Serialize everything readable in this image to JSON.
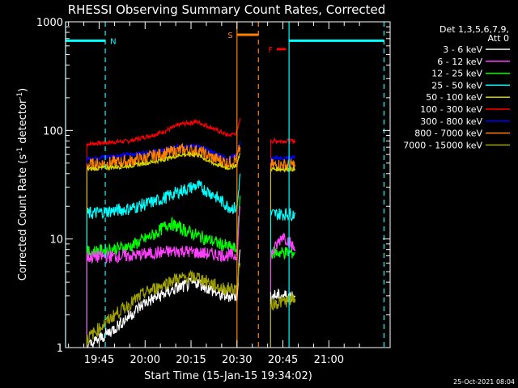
{
  "chart_data": {
    "type": "line",
    "title": "RHESSI Observing Summary Count Rates, Corrected",
    "xlabel": "Start Time (15-Jan-15 19:34:02)",
    "ylabel": "Corrected Count Rate (s⁻¹ detector⁻¹)",
    "ylabel_parts": {
      "a": "Corrected Count Rate (s",
      "b": "-1",
      "c": " detector",
      "d": "-1",
      "e": ")"
    },
    "y_scale": "log",
    "ylim": [
      1,
      1000
    ],
    "xlim": [
      "19:34:02",
      "21:20:00"
    ],
    "y_ticks": [
      "1",
      "10",
      "100",
      "1000"
    ],
    "x_ticks": [
      "19:45",
      "20:00",
      "20:15",
      "20:30",
      "20:45",
      "21:00"
    ],
    "timestamp": "25-Oct-2021 08:04",
    "detector_info": [
      "Det 1,3,5,6,7,9,",
      "Att 0"
    ],
    "legend_placement": "right",
    "series": [
      {
        "name": "3 - 6 keV",
        "color": "#ffffff"
      },
      {
        "name": "6 - 12 keV",
        "color": "#ff40ff"
      },
      {
        "name": "12 - 25 keV",
        "color": "#00ff00"
      },
      {
        "name": "25 - 50 keV",
        "color": "#00ffff"
      },
      {
        "name": "50 - 100 keV",
        "color": "#d4d400"
      },
      {
        "name": "100 - 300 keV",
        "color": "#ff0000"
      },
      {
        "name": "300 - 800 keV",
        "color": "#0000ff"
      },
      {
        "name": "800 - 7000 keV",
        "color": "#ff8000"
      },
      {
        "name": "7000 - 15000 keV",
        "color": "#a0a000"
      }
    ],
    "curves": [
      {
        "series": "100 - 300 keV",
        "color": "#ff0000",
        "segments": [
          [
            [
              "19:41",
              75
            ],
            [
              "19:55",
              80
            ],
            [
              "20:05",
              95
            ],
            [
              "20:12",
              115
            ],
            [
              "20:17",
              120
            ],
            [
              "20:22",
              105
            ],
            [
              "20:27",
              90
            ],
            [
              "20:30",
              95
            ],
            [
              "20:31",
              130
            ]
          ],
          [
            [
              "20:41",
              80
            ],
            [
              "20:49",
              80
            ]
          ]
        ]
      },
      {
        "series": "300 - 800 keV",
        "color": "#0000ff",
        "segments": [
          [
            [
              "19:41",
              55
            ],
            [
              "19:55",
              60
            ],
            [
              "20:05",
              65
            ],
            [
              "20:12",
              72
            ],
            [
              "20:17",
              72
            ],
            [
              "20:22",
              63
            ],
            [
              "20:27",
              55
            ],
            [
              "20:30",
              60
            ],
            [
              "20:31",
              80
            ]
          ],
          [
            [
              "20:41",
              55
            ],
            [
              "20:49",
              56
            ]
          ]
        ]
      },
      {
        "series": "800 - 7000 keV",
        "color": "#ff8000",
        "segments": [
          [
            [
              "19:41",
              48
            ],
            [
              "19:55",
              52
            ],
            [
              "20:05",
              60
            ],
            [
              "20:12",
              66
            ],
            [
              "20:17",
              65
            ],
            [
              "20:22",
              56
            ],
            [
              "20:27",
              50
            ],
            [
              "20:30",
              55
            ],
            [
              "20:31",
              70
            ]
          ],
          [
            [
              "20:41",
              48
            ],
            [
              "20:49",
              48
            ]
          ]
        ]
      },
      {
        "series": "50 - 100 keV",
        "color": "#d4d400",
        "segments": [
          [
            [
              "19:41",
              44
            ],
            [
              "19:55",
              47
            ],
            [
              "20:05",
              53
            ],
            [
              "20:12",
              60
            ],
            [
              "20:17",
              60
            ],
            [
              "20:22",
              50
            ],
            [
              "20:27",
              45
            ],
            [
              "20:30",
              48
            ],
            [
              "20:31",
              62
            ]
          ],
          [
            [
              "20:41",
              44
            ],
            [
              "20:49",
              44
            ]
          ]
        ]
      },
      {
        "series": "25 - 50 keV",
        "color": "#00ffff",
        "segments": [
          [
            [
              "19:41",
              17
            ],
            [
              "19:55",
              19
            ],
            [
              "20:05",
              23
            ],
            [
              "20:12",
              28
            ],
            [
              "20:17",
              31
            ],
            [
              "20:22",
              26
            ],
            [
              "20:27",
              20
            ],
            [
              "20:30",
              19
            ],
            [
              "20:31",
              40
            ]
          ],
          [
            [
              "20:41",
              17
            ],
            [
              "20:49",
              17
            ]
          ]
        ]
      },
      {
        "series": "12 - 25 keV",
        "color": "#00ff00",
        "segments": [
          [
            [
              "19:41",
              7.5
            ],
            [
              "19:55",
              8.5
            ],
            [
              "20:03",
              11
            ],
            [
              "20:08",
              14
            ],
            [
              "20:13",
              12
            ],
            [
              "20:20",
              10
            ],
            [
              "20:27",
              8.5
            ],
            [
              "20:30",
              8
            ],
            [
              "20:31",
              25
            ]
          ],
          [
            [
              "20:41",
              7.5
            ],
            [
              "20:49",
              7.5
            ]
          ]
        ]
      },
      {
        "series": "6 - 12 keV",
        "color": "#ff40ff",
        "segments": [
          [
            [
              "19:41",
              6.8
            ],
            [
              "19:55",
              7
            ],
            [
              "20:05",
              7.5
            ],
            [
              "20:12",
              7.8
            ],
            [
              "20:20",
              7.3
            ],
            [
              "20:30",
              7
            ],
            [
              "20:31",
              20
            ]
          ],
          [
            [
              "20:41",
              7
            ],
            [
              "20:45",
              11
            ],
            [
              "20:49",
              8
            ]
          ]
        ]
      },
      {
        "series": "3 - 6 keV",
        "color": "#ffffff",
        "segments": [
          [
            [
              "19:41",
              1
            ],
            [
              "19:50",
              1.5
            ],
            [
              "20:00",
              2.6
            ],
            [
              "20:10",
              3.5
            ],
            [
              "20:17",
              4
            ],
            [
              "20:25",
              3
            ],
            [
              "20:30",
              3
            ],
            [
              "20:31",
              8
            ]
          ],
          [
            [
              "20:41",
              3
            ],
            [
              "20:49",
              3
            ]
          ]
        ]
      },
      {
        "series": "7000 - 15000 keV",
        "color": "#a0a000",
        "segments": [
          [
            [
              "19:41",
              1.2
            ],
            [
              "19:50",
              2
            ],
            [
              "20:00",
              3.2
            ],
            [
              "20:10",
              4.3
            ],
            [
              "20:17",
              4.5
            ],
            [
              "20:25",
              3.5
            ],
            [
              "20:30",
              3.5
            ],
            [
              "20:31",
              6
            ]
          ],
          [
            [
              "20:41",
              2.5
            ],
            [
              "20:49",
              2.8
            ]
          ]
        ]
      }
    ],
    "annotations": [
      {
        "label": "N",
        "color": "#00ffff",
        "y": 670,
        "x1": "19:34:02",
        "x2": "19:47",
        "dashed_at": "19:47"
      },
      {
        "label": "S",
        "color": "#ff8000",
        "y": 760,
        "x1": "20:30",
        "x2": "20:37",
        "dashed_at": "20:37"
      },
      {
        "label": "F",
        "color": "#ff0000",
        "y": 560,
        "x1": "20:43",
        "x2": "20:46"
      },
      {
        "label": "",
        "color": "#00ffff",
        "y": 670,
        "x1": "20:47",
        "x2": "21:18",
        "dashed_at": "21:18"
      }
    ],
    "vertical_lines": [
      {
        "x": "19:34:02",
        "color": "#00ffff",
        "style": "solid"
      },
      {
        "x": "19:47",
        "color": "#00ffff",
        "style": "dashed"
      },
      {
        "x": "20:30",
        "color": "#ff8000",
        "style": "solid"
      },
      {
        "x": "20:37",
        "color": "#ff8000",
        "style": "dashed"
      },
      {
        "x": "20:47",
        "color": "#00ffff",
        "style": "solid"
      },
      {
        "x": "21:18",
        "color": "#00ffff",
        "style": "dashed"
      }
    ]
  }
}
